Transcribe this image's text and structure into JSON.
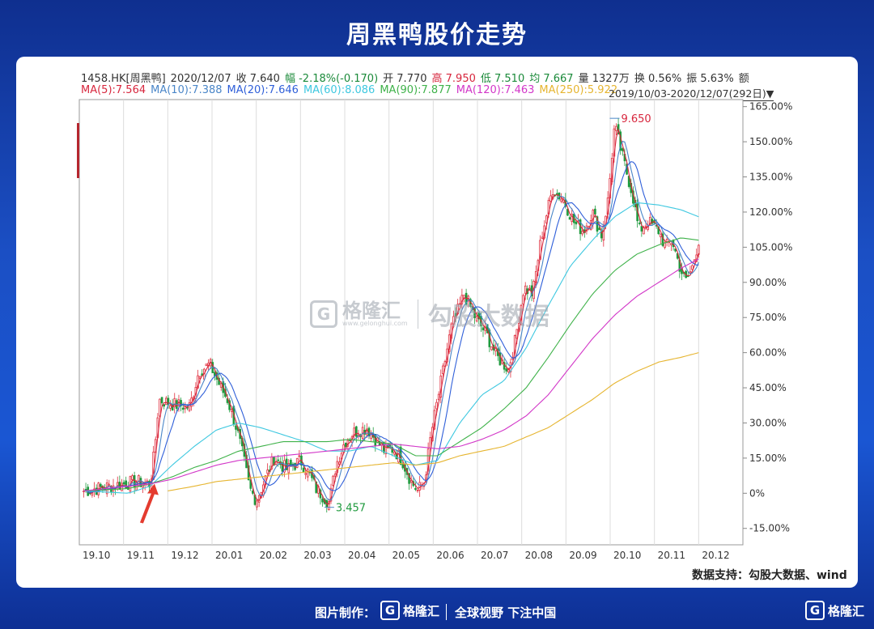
{
  "page_title": "周黑鸭股价走势",
  "info": {
    "line1": [
      {
        "text": "1458.HK[周黑鸭]",
        "color": "#333333"
      },
      {
        "text": "2020/12/07",
        "color": "#333333"
      },
      {
        "text": "收 7.640",
        "color": "#333333"
      },
      {
        "text": "幅 -2.18%(-0.170)",
        "color": "#1b8a3a"
      },
      {
        "text": "开 7.770",
        "color": "#333333"
      },
      {
        "text": "高 7.950",
        "color": "#d7263d"
      },
      {
        "text": "低 7.510",
        "color": "#1b8a3a"
      },
      {
        "text": "均 7.667",
        "color": "#1b8a3a"
      },
      {
        "text": "量 1327万",
        "color": "#333333"
      },
      {
        "text": "换 0.56%",
        "color": "#333333"
      },
      {
        "text": "振 5.63%",
        "color": "#333333"
      },
      {
        "text": "额",
        "color": "#333333"
      }
    ],
    "line2": [
      {
        "text": "MA(5):7.564",
        "color": "#d7263d"
      },
      {
        "text": "MA(10):7.388",
        "color": "#4a86c8"
      },
      {
        "text": "MA(20):7.646",
        "color": "#2f5fd9"
      },
      {
        "text": "MA(60):8.086",
        "color": "#3ec8e0"
      },
      {
        "text": "MA(90):7.877",
        "color": "#3fb24a"
      },
      {
        "text": "MA(120):7.463",
        "color": "#d236c8"
      },
      {
        "text": "MA(250):5.922",
        "color": "#e6b530"
      }
    ],
    "date_range": "2019/10/03-2020/12/07(292日)▼"
  },
  "chart_data": {
    "type": "line",
    "y_unit": "%",
    "ylim": [
      -22,
      168
    ],
    "yticks": [
      165,
      150,
      135,
      120,
      105,
      90,
      75,
      60,
      45,
      30,
      15,
      0,
      -15
    ],
    "ytick_labels": [
      "165.00%",
      "150.00%",
      "135.00%",
      "120.00%",
      "105.00%",
      "90.00%",
      "75.00%",
      "60.00%",
      "45.00%",
      "30.00%",
      "15.00%",
      "0%",
      "-15.00%"
    ],
    "x_ticks": [
      "19.10",
      "19.11",
      "19.12",
      "20.01",
      "20.02",
      "20.03",
      "20.04",
      "20.05",
      "20.06",
      "20.07",
      "20.08",
      "20.09",
      "20.10",
      "20.11",
      "20.12"
    ],
    "annotations": [
      {
        "label": "9.650",
        "x": 12.0,
        "y": 160
      },
      {
        "label": "3.457",
        "x": 5.55,
        "y": -6
      }
    ],
    "price_anchors": [
      [
        0,
        1
      ],
      [
        0.6,
        3
      ],
      [
        1.2,
        5
      ],
      [
        1.5,
        4
      ],
      [
        1.6,
        18
      ],
      [
        1.7,
        40
      ],
      [
        2.0,
        38
      ],
      [
        2.4,
        37
      ],
      [
        2.6,
        52
      ],
      [
        2.85,
        55
      ],
      [
        3.1,
        45
      ],
      [
        3.25,
        40
      ],
      [
        3.45,
        28
      ],
      [
        3.6,
        16
      ],
      [
        3.75,
        2
      ],
      [
        3.9,
        -3
      ],
      [
        4.1,
        6
      ],
      [
        4.3,
        15
      ],
      [
        4.6,
        10
      ],
      [
        4.9,
        14
      ],
      [
        5.1,
        8
      ],
      [
        5.25,
        2
      ],
      [
        5.45,
        -2
      ],
      [
        5.55,
        -4
      ],
      [
        5.7,
        12
      ],
      [
        5.9,
        22
      ],
      [
        6.1,
        26
      ],
      [
        6.4,
        28
      ],
      [
        6.6,
        23
      ],
      [
        6.8,
        18
      ],
      [
        7.0,
        19
      ],
      [
        7.2,
        14
      ],
      [
        7.4,
        5
      ],
      [
        7.55,
        1
      ],
      [
        7.7,
        5
      ],
      [
        7.85,
        25
      ],
      [
        8.1,
        50
      ],
      [
        8.3,
        70
      ],
      [
        8.6,
        85
      ],
      [
        8.85,
        75
      ],
      [
        9.1,
        68
      ],
      [
        9.35,
        58
      ],
      [
        9.6,
        53
      ],
      [
        9.75,
        65
      ],
      [
        9.95,
        88
      ],
      [
        10.15,
        85
      ],
      [
        10.35,
        110
      ],
      [
        10.6,
        130
      ],
      [
        10.85,
        125
      ],
      [
        11.1,
        115
      ],
      [
        11.3,
        112
      ],
      [
        11.5,
        120
      ],
      [
        11.7,
        110
      ],
      [
        11.85,
        125
      ],
      [
        12.0,
        157
      ],
      [
        12.2,
        142
      ],
      [
        12.4,
        128
      ],
      [
        12.55,
        112
      ],
      [
        12.75,
        116
      ],
      [
        13.0,
        112
      ],
      [
        13.15,
        105
      ],
      [
        13.3,
        108
      ],
      [
        13.45,
        98
      ],
      [
        13.6,
        90
      ],
      [
        13.75,
        96
      ],
      [
        13.9,
        108
      ]
    ],
    "series": [
      {
        "name": "MA(5)",
        "color": "#d7263d",
        "smooth": 3
      },
      {
        "name": "MA(10)",
        "color": "#4a86c8",
        "smooth": 6
      },
      {
        "name": "MA(20)",
        "color": "#2f5fd9",
        "smooth": 12
      },
      {
        "name": "MA(60)",
        "anchors": [
          [
            0,
            1
          ],
          [
            1,
            0
          ],
          [
            1.5,
            3
          ],
          [
            2,
            12
          ],
          [
            2.5,
            20
          ],
          [
            3,
            27
          ],
          [
            3.5,
            30
          ],
          [
            4,
            28
          ],
          [
            4.5,
            25
          ],
          [
            5,
            22
          ],
          [
            5.5,
            18
          ],
          [
            6,
            18
          ],
          [
            6.5,
            20
          ],
          [
            7,
            16
          ],
          [
            7.5,
            12
          ],
          [
            8,
            14
          ],
          [
            8.5,
            30
          ],
          [
            9,
            42
          ],
          [
            9.5,
            48
          ],
          [
            10,
            62
          ],
          [
            10.5,
            80
          ],
          [
            11,
            97
          ],
          [
            11.5,
            108
          ],
          [
            12,
            118
          ],
          [
            12.5,
            124
          ],
          [
            13,
            123
          ],
          [
            13.5,
            121
          ],
          [
            13.9,
            118
          ]
        ],
        "color": "#3ec8e0"
      },
      {
        "name": "MA(90)",
        "anchors": [
          [
            0,
            1
          ],
          [
            1,
            2
          ],
          [
            1.5,
            4
          ],
          [
            2,
            7
          ],
          [
            2.5,
            11
          ],
          [
            3,
            14
          ],
          [
            3.5,
            18
          ],
          [
            4,
            20
          ],
          [
            4.5,
            22
          ],
          [
            5,
            22
          ],
          [
            5.5,
            22
          ],
          [
            6,
            23
          ],
          [
            6.5,
            22
          ],
          [
            7,
            21
          ],
          [
            7.5,
            16
          ],
          [
            8,
            16
          ],
          [
            8.5,
            22
          ],
          [
            9,
            28
          ],
          [
            9.5,
            36
          ],
          [
            10,
            45
          ],
          [
            10.5,
            58
          ],
          [
            11,
            72
          ],
          [
            11.5,
            85
          ],
          [
            12,
            95
          ],
          [
            12.5,
            102
          ],
          [
            13,
            106
          ],
          [
            13.5,
            109
          ],
          [
            13.9,
            108
          ]
        ],
        "color": "#3fb24a"
      },
      {
        "name": "MA(120)",
        "anchors": [
          [
            0,
            1
          ],
          [
            1,
            3
          ],
          [
            1.5,
            4
          ],
          [
            2,
            6
          ],
          [
            2.5,
            9
          ],
          [
            3,
            12
          ],
          [
            3.5,
            14
          ],
          [
            4,
            15
          ],
          [
            4.5,
            16
          ],
          [
            5,
            17
          ],
          [
            5.5,
            18
          ],
          [
            6,
            19
          ],
          [
            6.5,
            20
          ],
          [
            7,
            21
          ],
          [
            7.5,
            20
          ],
          [
            8,
            19
          ],
          [
            8.5,
            20
          ],
          [
            9,
            23
          ],
          [
            9.5,
            27
          ],
          [
            10,
            33
          ],
          [
            10.5,
            42
          ],
          [
            11,
            54
          ],
          [
            11.5,
            66
          ],
          [
            12,
            76
          ],
          [
            12.5,
            84
          ],
          [
            13,
            90
          ],
          [
            13.5,
            96
          ],
          [
            13.9,
            100
          ]
        ],
        "color": "#d236c8"
      },
      {
        "name": "MA(250)",
        "anchors": [
          [
            1.9,
            1
          ],
          [
            2.5,
            3
          ],
          [
            3,
            5
          ],
          [
            3.5,
            6
          ],
          [
            4,
            7
          ],
          [
            5,
            9
          ],
          [
            6,
            11
          ],
          [
            6.5,
            12
          ],
          [
            7,
            13
          ],
          [
            7.5,
            12
          ],
          [
            8,
            13
          ],
          [
            8.5,
            16
          ],
          [
            9,
            18
          ],
          [
            9.5,
            20
          ],
          [
            10,
            24
          ],
          [
            10.5,
            28
          ],
          [
            11,
            34
          ],
          [
            11.5,
            40
          ],
          [
            12,
            47
          ],
          [
            12.5,
            52
          ],
          [
            13,
            56
          ],
          [
            13.5,
            58
          ],
          [
            13.9,
            60
          ]
        ],
        "color": "#e6b530"
      }
    ]
  },
  "source": "数据支持：勾股大数据、wind",
  "watermark": {
    "logo_letter": "G",
    "brand": "格隆汇",
    "brand_sub": "www.gelonghui.com",
    "product": "勾股大数据"
  },
  "footer": {
    "label": "图片制作：",
    "logo_letter": "G",
    "brand": "格隆汇",
    "slogan": "全球视野 下注中国"
  },
  "corner_logo": {
    "logo_letter": "G",
    "brand": "格隆汇"
  }
}
